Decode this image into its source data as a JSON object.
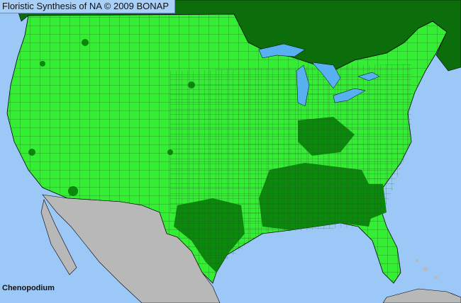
{
  "header": {
    "title": "Floristic Synthesis of NA © 2009 BONAP"
  },
  "map": {
    "taxon": "Chenopodium",
    "colors": {
      "ocean": "#9cc8f8",
      "canada": "#0b6e0b",
      "us_present": "#33ee33",
      "us_dark": "#0a8a0a",
      "mexico": "#b8b8b8",
      "lakes": "#58b0f0",
      "borders": "#000000"
    }
  }
}
